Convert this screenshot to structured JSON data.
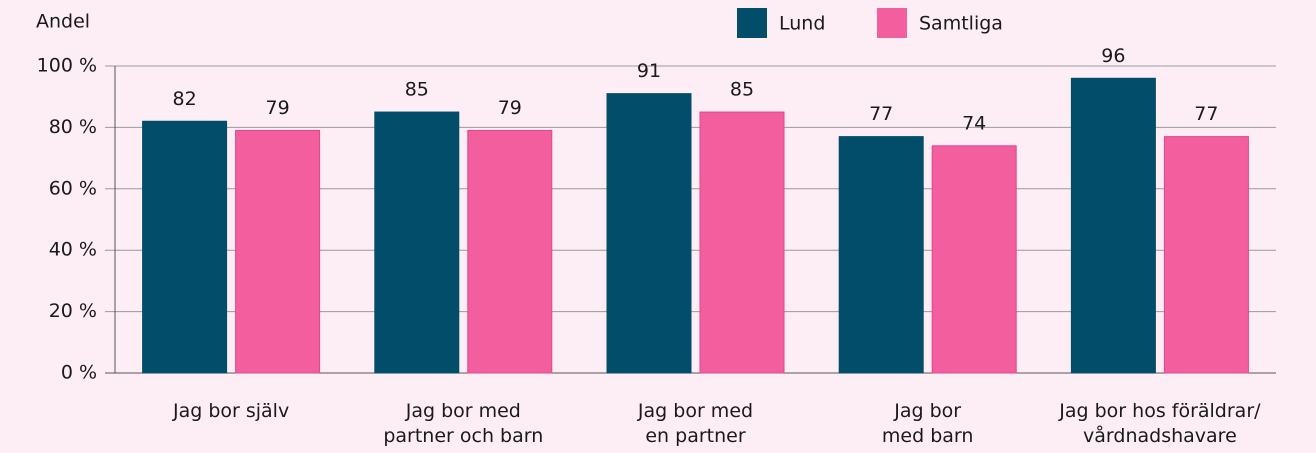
{
  "chart_data": {
    "type": "bar",
    "y_label": "Andel",
    "categories": [
      [
        "Jag bor själv"
      ],
      [
        "Jag bor med",
        "partner och barn"
      ],
      [
        "Jag bor med",
        "en partner"
      ],
      [
        "Jag bor",
        "med barn"
      ],
      [
        "Jag bor hos föräldrar/",
        "vårdnadshavare"
      ]
    ],
    "series": [
      {
        "name": "Lund",
        "color": "#024d69",
        "values": [
          82,
          85,
          91,
          77,
          96
        ]
      },
      {
        "name": "Samtliga",
        "color": "#f25e9e",
        "values": [
          79,
          79,
          85,
          74,
          77
        ]
      }
    ],
    "ylim": [
      0,
      100
    ],
    "yticks": [
      {
        "value": 0,
        "label": "0 %"
      },
      {
        "value": 20,
        "label": "20 %"
      },
      {
        "value": 40,
        "label": "40 %"
      },
      {
        "value": 60,
        "label": "60 %"
      },
      {
        "value": 80,
        "label": "80 %"
      },
      {
        "value": 100,
        "label": "100 %"
      }
    ],
    "grid": true,
    "legend": "top"
  }
}
